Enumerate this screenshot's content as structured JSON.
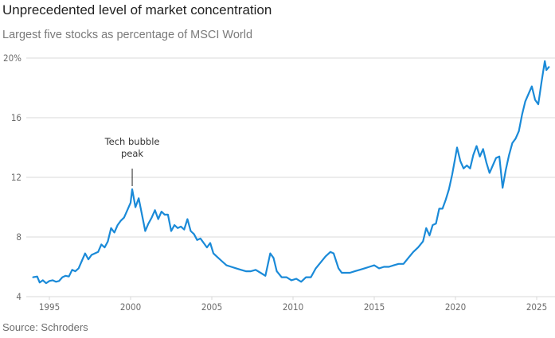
{
  "header": {
    "title": "Unprecedented level of market concentration",
    "subtitle": "Largest five stocks as percentage of MSCI World"
  },
  "footer": {
    "source": "Source: Schroders"
  },
  "colors": {
    "line": "#1a8ad8",
    "grid": "#d9d9d9",
    "annotation_line": "#222222"
  },
  "chart_data": {
    "type": "line",
    "title": "Unprecedented level of market concentration",
    "subtitle": "Largest five stocks as percentage of MSCI World",
    "xlabel": "",
    "ylabel": "",
    "xlim": [
      1993.9,
      2025.9
    ],
    "ylim": [
      4,
      20
    ],
    "grid": true,
    "legend": "none",
    "x_ticks": [
      {
        "value": 1995,
        "label": "1995"
      },
      {
        "value": 2000,
        "label": "2000"
      },
      {
        "value": 2005,
        "label": "2005"
      },
      {
        "value": 2010,
        "label": "2010"
      },
      {
        "value": 2015,
        "label": "2015"
      },
      {
        "value": 2020,
        "label": "2020"
      },
      {
        "value": 2025,
        "label": "2025"
      }
    ],
    "y_ticks": [
      {
        "value": 4,
        "label": "4"
      },
      {
        "value": 8,
        "label": "8"
      },
      {
        "value": 12,
        "label": "12"
      },
      {
        "value": 16,
        "label": "16"
      },
      {
        "value": 20,
        "label": "20%"
      }
    ],
    "annotations": [
      {
        "text_lines": [
          "Tech bubble",
          "peak"
        ],
        "x": 2000.1,
        "y": 11.2
      }
    ],
    "series": [
      {
        "name": "Largest five stocks share of MSCI World (%)",
        "x": [
          1994.0,
          1994.25,
          1994.4,
          1994.6,
          1994.8,
          1995.0,
          1995.2,
          1995.4,
          1995.6,
          1995.8,
          1996.0,
          1996.2,
          1996.4,
          1996.6,
          1996.8,
          1997.0,
          1997.2,
          1997.4,
          1997.6,
          1997.8,
          1998.0,
          1998.2,
          1998.4,
          1998.6,
          1998.8,
          1999.0,
          1999.2,
          1999.4,
          1999.6,
          1999.8,
          2000.0,
          2000.1,
          2000.3,
          2000.5,
          2000.7,
          2000.9,
          2001.1,
          2001.3,
          2001.5,
          2001.7,
          2001.9,
          2002.1,
          2002.3,
          2002.5,
          2002.7,
          2002.9,
          2003.1,
          2003.3,
          2003.5,
          2003.7,
          2003.9,
          2004.1,
          2004.3,
          2004.5,
          2004.7,
          2004.9,
          2005.1,
          2005.3,
          2005.6,
          2005.9,
          2006.2,
          2006.5,
          2006.8,
          2007.1,
          2007.4,
          2007.7,
          2008.0,
          2008.3,
          2008.6,
          2008.8,
          2009.0,
          2009.3,
          2009.6,
          2009.9,
          2010.2,
          2010.5,
          2010.8,
          2011.1,
          2011.4,
          2011.7,
          2012.0,
          2012.3,
          2012.5,
          2012.8,
          2013.0,
          2013.2,
          2013.5,
          2013.8,
          2014.1,
          2014.4,
          2014.7,
          2015.0,
          2015.3,
          2015.6,
          2015.9,
          2016.2,
          2016.5,
          2016.8,
          2017.1,
          2017.4,
          2017.7,
          2018.0,
          2018.2,
          2018.4,
          2018.6,
          2018.8,
          2019.0,
          2019.2,
          2019.4,
          2019.6,
          2019.8,
          2020.0,
          2020.1,
          2020.3,
          2020.5,
          2020.7,
          2020.9,
          2021.1,
          2021.3,
          2021.5,
          2021.7,
          2021.9,
          2022.1,
          2022.3,
          2022.5,
          2022.7,
          2022.9,
          2023.1,
          2023.3,
          2023.5,
          2023.7,
          2023.9,
          2024.1,
          2024.3,
          2024.5,
          2024.7,
          2024.9,
          2025.1,
          2025.3,
          2025.5,
          2025.6,
          2025.75
        ],
        "values": [
          5.3,
          5.35,
          4.95,
          5.1,
          4.9,
          5.05,
          5.1,
          5.0,
          5.05,
          5.3,
          5.4,
          5.35,
          5.8,
          5.7,
          5.9,
          6.4,
          6.9,
          6.5,
          6.8,
          6.9,
          7.0,
          7.5,
          7.3,
          7.7,
          8.6,
          8.3,
          8.8,
          9.1,
          9.3,
          9.8,
          10.3,
          11.2,
          10.0,
          10.6,
          9.5,
          8.4,
          8.9,
          9.3,
          9.8,
          9.2,
          9.7,
          9.5,
          9.5,
          8.4,
          8.8,
          8.6,
          8.7,
          8.5,
          9.2,
          8.4,
          8.2,
          7.8,
          7.9,
          7.6,
          7.3,
          7.6,
          6.9,
          6.7,
          6.4,
          6.1,
          6.0,
          5.9,
          5.8,
          5.7,
          5.7,
          5.8,
          5.6,
          5.4,
          6.9,
          6.6,
          5.7,
          5.3,
          5.3,
          5.1,
          5.2,
          5.0,
          5.3,
          5.3,
          5.9,
          6.3,
          6.7,
          7.0,
          6.9,
          5.9,
          5.6,
          5.6,
          5.6,
          5.7,
          5.8,
          5.9,
          6.0,
          6.1,
          5.9,
          6.0,
          6.0,
          6.1,
          6.2,
          6.2,
          6.6,
          7.0,
          7.3,
          7.7,
          8.6,
          8.1,
          8.8,
          8.9,
          9.9,
          9.9,
          10.5,
          11.2,
          12.2,
          13.4,
          14.0,
          13.1,
          12.6,
          12.8,
          12.6,
          13.5,
          14.1,
          13.4,
          13.9,
          13.0,
          12.3,
          12.8,
          13.3,
          13.4,
          11.3,
          12.5,
          13.5,
          14.3,
          14.6,
          15.1,
          16.2,
          17.1,
          17.6,
          18.1,
          17.2,
          16.9,
          18.4,
          19.8,
          19.2,
          19.4
        ]
      }
    ]
  }
}
